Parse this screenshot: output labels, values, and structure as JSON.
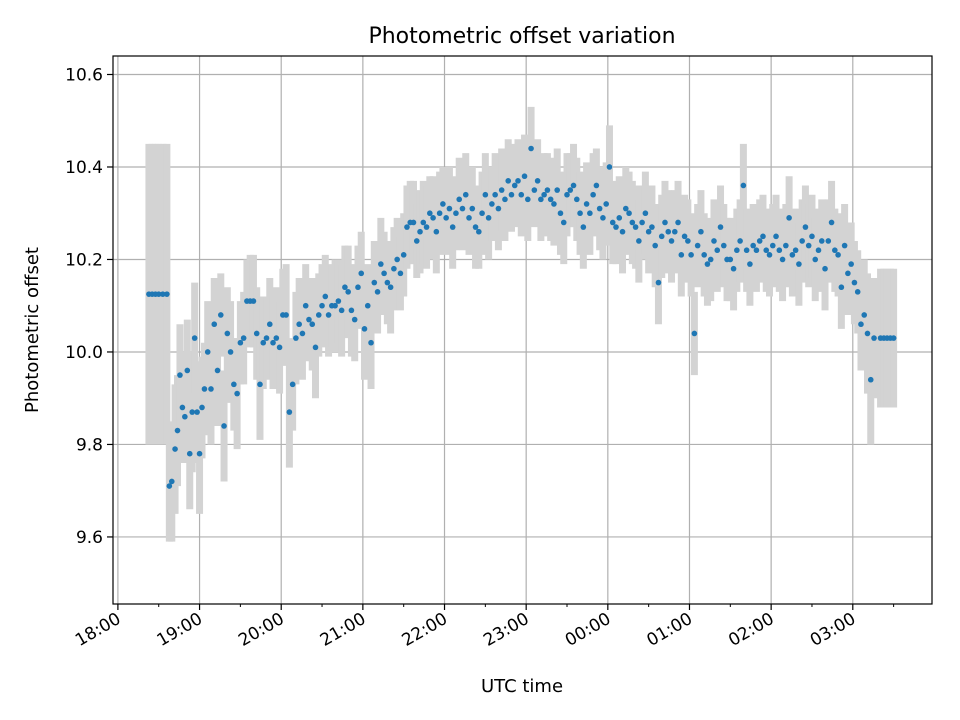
{
  "chart_data": {
    "type": "scatter",
    "title": "Photometric offset variation",
    "xlabel": "UTC time",
    "ylabel": "Photometric offset",
    "x_ticks": [
      "18:00",
      "19:00",
      "20:00",
      "21:00",
      "22:00",
      "23:00",
      "00:00",
      "01:00",
      "02:00",
      "03:00"
    ],
    "y_ticks": [
      "9.6",
      "9.8",
      "10.0",
      "10.2",
      "10.4",
      "10.6"
    ],
    "x_unit": "hours since 18:00 UTC",
    "xlim": [
      -0.06,
      9.97
    ],
    "ylim": [
      9.455,
      10.64
    ],
    "grid": true,
    "point_color": "#1f77b4",
    "errorbar_color": "#d3d3d3",
    "series": [
      {
        "values": [
          [
            0.38,
            10.125,
            0.325
          ],
          [
            0.42,
            10.125,
            0.325
          ],
          [
            0.46,
            10.125,
            0.325
          ],
          [
            0.5,
            10.125,
            0.325
          ],
          [
            0.55,
            10.125,
            0.325
          ],
          [
            0.6,
            10.125,
            0.325
          ],
          [
            0.63,
            9.71,
            0.12
          ],
          [
            0.66,
            9.72,
            0.13
          ],
          [
            0.7,
            9.79,
            0.14
          ],
          [
            0.73,
            9.83,
            0.12
          ],
          [
            0.76,
            9.95,
            0.11
          ],
          [
            0.79,
            9.88,
            0.12
          ],
          [
            0.82,
            9.86,
            0.1
          ],
          [
            0.85,
            9.96,
            0.11
          ],
          [
            0.88,
            9.78,
            0.12
          ],
          [
            0.91,
            9.87,
            0.13
          ],
          [
            0.94,
            10.03,
            0.12
          ],
          [
            0.97,
            9.87,
            0.11
          ],
          [
            1.0,
            9.78,
            0.13
          ],
          [
            1.03,
            9.88,
            0.11
          ],
          [
            1.06,
            9.92,
            0.1
          ],
          [
            1.1,
            10.0,
            0.11
          ],
          [
            1.14,
            9.92,
            0.12
          ],
          [
            1.18,
            10.06,
            0.1
          ],
          [
            1.22,
            9.96,
            0.12
          ],
          [
            1.26,
            10.08,
            0.09
          ],
          [
            1.3,
            9.84,
            0.12
          ],
          [
            1.34,
            10.04,
            0.1
          ],
          [
            1.38,
            10.0,
            0.11
          ],
          [
            1.42,
            9.93,
            0.1
          ],
          [
            1.46,
            9.91,
            0.12
          ],
          [
            1.5,
            10.02,
            0.09
          ],
          [
            1.54,
            10.03,
            0.1
          ],
          [
            1.58,
            10.11,
            0.09
          ],
          [
            1.62,
            10.11,
            0.1
          ],
          [
            1.66,
            10.11,
            0.1
          ],
          [
            1.7,
            10.04,
            0.1
          ],
          [
            1.74,
            9.93,
            0.12
          ],
          [
            1.78,
            10.02,
            0.1
          ],
          [
            1.82,
            10.03,
            0.09
          ],
          [
            1.86,
            10.06,
            0.1
          ],
          [
            1.9,
            10.02,
            0.1
          ],
          [
            1.94,
            10.03,
            0.11
          ],
          [
            1.98,
            10.01,
            0.1
          ],
          [
            2.02,
            10.08,
            0.1
          ],
          [
            2.06,
            10.08,
            0.11
          ],
          [
            2.1,
            9.87,
            0.12
          ],
          [
            2.14,
            9.93,
            0.1
          ],
          [
            2.18,
            10.03,
            0.1
          ],
          [
            2.22,
            10.06,
            0.1
          ],
          [
            2.26,
            10.04,
            0.1
          ],
          [
            2.3,
            10.1,
            0.09
          ],
          [
            2.34,
            10.07,
            0.09
          ],
          [
            2.38,
            10.06,
            0.1
          ],
          [
            2.42,
            10.01,
            0.11
          ],
          [
            2.46,
            10.08,
            0.09
          ],
          [
            2.5,
            10.1,
            0.09
          ],
          [
            2.54,
            10.12,
            0.09
          ],
          [
            2.58,
            10.08,
            0.09
          ],
          [
            2.62,
            10.1,
            0.09
          ],
          [
            2.66,
            10.1,
            0.1
          ],
          [
            2.7,
            10.11,
            0.09
          ],
          [
            2.74,
            10.09,
            0.1
          ],
          [
            2.78,
            10.14,
            0.09
          ],
          [
            2.82,
            10.13,
            0.1
          ],
          [
            2.86,
            10.09,
            0.1
          ],
          [
            2.9,
            10.07,
            0.09
          ],
          [
            2.94,
            10.14,
            0.09
          ],
          [
            2.98,
            10.17,
            0.09
          ],
          [
            3.02,
            10.05,
            0.11
          ],
          [
            3.06,
            10.1,
            0.09
          ],
          [
            3.1,
            10.02,
            0.1
          ],
          [
            3.14,
            10.15,
            0.09
          ],
          [
            3.18,
            10.13,
            0.09
          ],
          [
            3.22,
            10.19,
            0.1
          ],
          [
            3.26,
            10.17,
            0.09
          ],
          [
            3.3,
            10.15,
            0.09
          ],
          [
            3.34,
            10.14,
            0.1
          ],
          [
            3.38,
            10.18,
            0.09
          ],
          [
            3.42,
            10.2,
            0.09
          ],
          [
            3.46,
            10.17,
            0.08
          ],
          [
            3.5,
            10.21,
            0.09
          ],
          [
            3.54,
            10.27,
            0.09
          ],
          [
            3.58,
            10.28,
            0.09
          ],
          [
            3.62,
            10.28,
            0.09
          ],
          [
            3.66,
            10.24,
            0.08
          ],
          [
            3.7,
            10.26,
            0.09
          ],
          [
            3.74,
            10.28,
            0.09
          ],
          [
            3.78,
            10.27,
            0.09
          ],
          [
            3.82,
            10.3,
            0.08
          ],
          [
            3.86,
            10.29,
            0.09
          ],
          [
            3.9,
            10.26,
            0.09
          ],
          [
            3.94,
            10.3,
            0.09
          ],
          [
            3.98,
            10.32,
            0.08
          ],
          [
            4.02,
            10.29,
            0.08
          ],
          [
            4.06,
            10.31,
            0.09
          ],
          [
            4.1,
            10.27,
            0.09
          ],
          [
            4.14,
            10.3,
            0.08
          ],
          [
            4.18,
            10.33,
            0.09
          ],
          [
            4.22,
            10.31,
            0.09
          ],
          [
            4.26,
            10.34,
            0.09
          ],
          [
            4.3,
            10.29,
            0.08
          ],
          [
            4.34,
            10.31,
            0.09
          ],
          [
            4.38,
            10.27,
            0.09
          ],
          [
            4.42,
            10.26,
            0.08
          ],
          [
            4.46,
            10.3,
            0.09
          ],
          [
            4.5,
            10.34,
            0.09
          ],
          [
            4.54,
            10.29,
            0.09
          ],
          [
            4.58,
            10.32,
            0.08
          ],
          [
            4.62,
            10.34,
            0.09
          ],
          [
            4.66,
            10.31,
            0.09
          ],
          [
            4.7,
            10.35,
            0.09
          ],
          [
            4.74,
            10.33,
            0.09
          ],
          [
            4.78,
            10.37,
            0.09
          ],
          [
            4.82,
            10.34,
            0.08
          ],
          [
            4.86,
            10.36,
            0.09
          ],
          [
            4.9,
            10.37,
            0.09
          ],
          [
            4.94,
            10.34,
            0.09
          ],
          [
            4.98,
            10.38,
            0.09
          ],
          [
            5.02,
            10.33,
            0.09
          ],
          [
            5.06,
            10.44,
            0.09
          ],
          [
            5.1,
            10.35,
            0.08
          ],
          [
            5.14,
            10.37,
            0.09
          ],
          [
            5.18,
            10.33,
            0.09
          ],
          [
            5.22,
            10.34,
            0.09
          ],
          [
            5.26,
            10.35,
            0.08
          ],
          [
            5.3,
            10.33,
            0.09
          ],
          [
            5.34,
            10.32,
            0.09
          ],
          [
            5.38,
            10.35,
            0.09
          ],
          [
            5.42,
            10.3,
            0.09
          ],
          [
            5.46,
            10.28,
            0.09
          ],
          [
            5.5,
            10.34,
            0.09
          ],
          [
            5.54,
            10.35,
            0.08
          ],
          [
            5.58,
            10.36,
            0.09
          ],
          [
            5.62,
            10.33,
            0.09
          ],
          [
            5.66,
            10.3,
            0.09
          ],
          [
            5.7,
            10.27,
            0.09
          ],
          [
            5.74,
            10.32,
            0.09
          ],
          [
            5.78,
            10.3,
            0.09
          ],
          [
            5.82,
            10.34,
            0.09
          ],
          [
            5.86,
            10.36,
            0.08
          ],
          [
            5.9,
            10.31,
            0.09
          ],
          [
            5.94,
            10.29,
            0.09
          ],
          [
            5.98,
            10.32,
            0.09
          ],
          [
            6.02,
            10.4,
            0.09
          ],
          [
            6.06,
            10.28,
            0.09
          ],
          [
            6.1,
            10.27,
            0.08
          ],
          [
            6.14,
            10.29,
            0.09
          ],
          [
            6.18,
            10.26,
            0.09
          ],
          [
            6.22,
            10.31,
            0.09
          ],
          [
            6.26,
            10.3,
            0.09
          ],
          [
            6.3,
            10.28,
            0.09
          ],
          [
            6.34,
            10.27,
            0.09
          ],
          [
            6.38,
            10.24,
            0.09
          ],
          [
            6.42,
            10.28,
            0.08
          ],
          [
            6.46,
            10.3,
            0.09
          ],
          [
            6.5,
            10.26,
            0.09
          ],
          [
            6.54,
            10.27,
            0.09
          ],
          [
            6.58,
            10.23,
            0.09
          ],
          [
            6.62,
            10.15,
            0.09
          ],
          [
            6.66,
            10.25,
            0.09
          ],
          [
            6.7,
            10.28,
            0.09
          ],
          [
            6.74,
            10.26,
            0.09
          ],
          [
            6.78,
            10.24,
            0.09
          ],
          [
            6.82,
            10.26,
            0.09
          ],
          [
            6.86,
            10.28,
            0.09
          ],
          [
            6.9,
            10.21,
            0.09
          ],
          [
            6.94,
            10.25,
            0.09
          ],
          [
            6.98,
            10.24,
            0.09
          ],
          [
            7.02,
            10.21,
            0.09
          ],
          [
            7.06,
            10.04,
            0.09
          ],
          [
            7.1,
            10.23,
            0.09
          ],
          [
            7.14,
            10.26,
            0.09
          ],
          [
            7.18,
            10.21,
            0.09
          ],
          [
            7.22,
            10.19,
            0.09
          ],
          [
            7.26,
            10.2,
            0.09
          ],
          [
            7.3,
            10.24,
            0.09
          ],
          [
            7.34,
            10.22,
            0.09
          ],
          [
            7.38,
            10.27,
            0.09
          ],
          [
            7.42,
            10.23,
            0.09
          ],
          [
            7.46,
            10.2,
            0.09
          ],
          [
            7.5,
            10.2,
            0.09
          ],
          [
            7.54,
            10.18,
            0.09
          ],
          [
            7.58,
            10.22,
            0.09
          ],
          [
            7.62,
            10.24,
            0.09
          ],
          [
            7.66,
            10.36,
            0.09
          ],
          [
            7.7,
            10.22,
            0.09
          ],
          [
            7.74,
            10.19,
            0.09
          ],
          [
            7.78,
            10.23,
            0.09
          ],
          [
            7.82,
            10.22,
            0.09
          ],
          [
            7.86,
            10.24,
            0.09
          ],
          [
            7.9,
            10.25,
            0.09
          ],
          [
            7.94,
            10.22,
            0.09
          ],
          [
            7.98,
            10.21,
            0.09
          ],
          [
            8.02,
            10.23,
            0.09
          ],
          [
            8.06,
            10.25,
            0.09
          ],
          [
            8.1,
            10.22,
            0.09
          ],
          [
            8.14,
            10.2,
            0.09
          ],
          [
            8.18,
            10.23,
            0.09
          ],
          [
            8.22,
            10.29,
            0.09
          ],
          [
            8.26,
            10.21,
            0.09
          ],
          [
            8.3,
            10.22,
            0.09
          ],
          [
            8.34,
            10.19,
            0.09
          ],
          [
            8.38,
            10.24,
            0.09
          ],
          [
            8.42,
            10.27,
            0.09
          ],
          [
            8.46,
            10.23,
            0.09
          ],
          [
            8.5,
            10.25,
            0.09
          ],
          [
            8.54,
            10.2,
            0.09
          ],
          [
            8.58,
            10.22,
            0.09
          ],
          [
            8.62,
            10.24,
            0.09
          ],
          [
            8.66,
            10.18,
            0.09
          ],
          [
            8.7,
            10.24,
            0.09
          ],
          [
            8.74,
            10.28,
            0.09
          ],
          [
            8.78,
            10.22,
            0.09
          ],
          [
            8.82,
            10.21,
            0.09
          ],
          [
            8.86,
            10.14,
            0.09
          ],
          [
            8.9,
            10.23,
            0.09
          ],
          [
            8.94,
            10.17,
            0.09
          ],
          [
            8.98,
            10.19,
            0.09
          ],
          [
            9.02,
            10.15,
            0.09
          ],
          [
            9.06,
            10.13,
            0.09
          ],
          [
            9.1,
            10.06,
            0.1
          ],
          [
            9.14,
            10.08,
            0.12
          ],
          [
            9.18,
            10.04,
            0.13
          ],
          [
            9.22,
            9.94,
            0.14
          ],
          [
            9.26,
            10.03,
            0.13
          ],
          [
            9.34,
            10.03,
            0.15
          ],
          [
            9.38,
            10.03,
            0.15
          ],
          [
            9.42,
            10.03,
            0.15
          ],
          [
            9.46,
            10.03,
            0.15
          ],
          [
            9.5,
            10.03,
            0.15
          ]
        ]
      }
    ]
  }
}
